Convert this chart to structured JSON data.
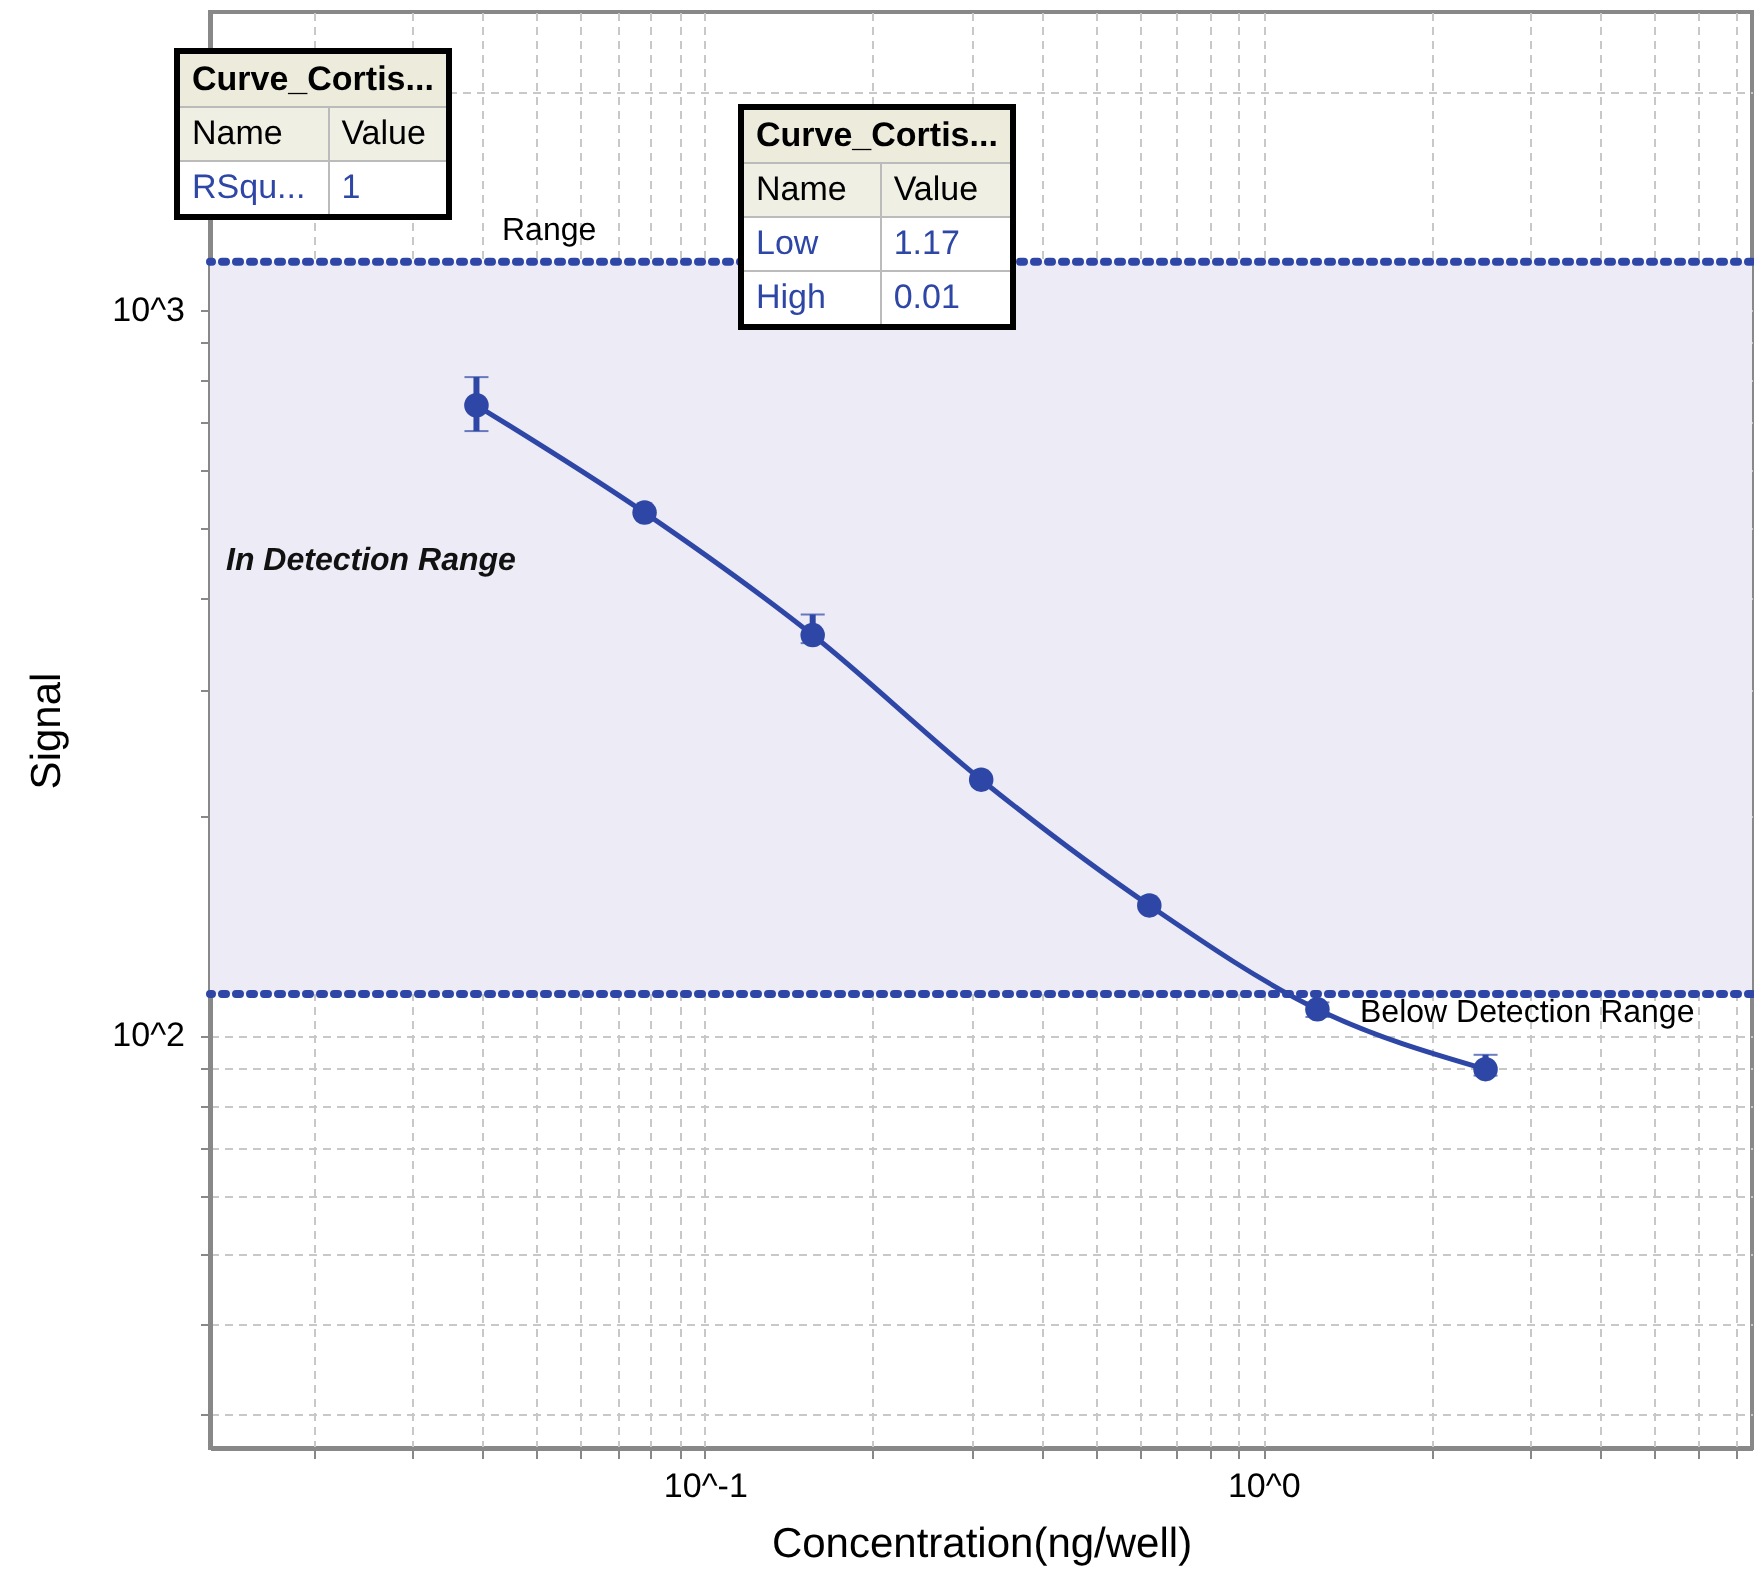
{
  "chart_data": {
    "type": "line",
    "xlabel": "Concentration(ng/well)",
    "ylabel": "Signal",
    "log": "xy",
    "x": [
      0.039,
      0.078,
      0.156,
      0.3125,
      0.625,
      1.25,
      2.5
    ],
    "series": [
      {
        "color": "#2e47a6",
        "values": [
          738,
          525,
          356,
          225,
          151,
          108.6,
          89.8
        ],
        "errors": [
          [
            680,
            807
          ],
          null,
          [
            347,
            380
          ],
          null,
          null,
          [
            106,
            111
          ],
          [
            88,
            94
          ]
        ]
      }
    ],
    "xlim": [
      0.013,
      7.5
    ],
    "ylim": [
      27,
      2570
    ],
    "xticks": [
      {
        "value": 0.02,
        "label": null
      },
      {
        "value": 0.03,
        "label": null
      },
      {
        "value": 0.04,
        "label": null
      },
      {
        "value": 0.05,
        "label": null
      },
      {
        "value": 0.06,
        "label": null
      },
      {
        "value": 0.07,
        "label": null
      },
      {
        "value": 0.08,
        "label": null
      },
      {
        "value": 0.09,
        "label": null
      },
      {
        "value": 0.1,
        "label": "10^-1"
      },
      {
        "value": 0.2,
        "label": null
      },
      {
        "value": 0.3,
        "label": null
      },
      {
        "value": 0.4,
        "label": null
      },
      {
        "value": 0.5,
        "label": null
      },
      {
        "value": 0.6,
        "label": null
      },
      {
        "value": 0.7,
        "label": null
      },
      {
        "value": 0.8,
        "label": null
      },
      {
        "value": 0.9,
        "label": null
      },
      {
        "value": 1,
        "label": "10^0"
      },
      {
        "value": 2,
        "label": null
      },
      {
        "value": 3,
        "label": null
      },
      {
        "value": 4,
        "label": null
      },
      {
        "value": 5,
        "label": null
      },
      {
        "value": 6,
        "label": null
      },
      {
        "value": 7,
        "label": null
      }
    ],
    "yticks": [
      {
        "value": 30,
        "label": null
      },
      {
        "value": 40,
        "label": null
      },
      {
        "value": 50,
        "label": null
      },
      {
        "value": 60,
        "label": null
      },
      {
        "value": 70,
        "label": null
      },
      {
        "value": 80,
        "label": null
      },
      {
        "value": 90,
        "label": null
      },
      {
        "value": 100,
        "label": "10^2"
      },
      {
        "value": 200,
        "label": null
      },
      {
        "value": 300,
        "label": null
      },
      {
        "value": 400,
        "label": null
      },
      {
        "value": 500,
        "label": null
      },
      {
        "value": 600,
        "label": null
      },
      {
        "value": 700,
        "label": null
      },
      {
        "value": 800,
        "label": null
      },
      {
        "value": 900,
        "label": null
      },
      {
        "value": 1000,
        "label": "10^3"
      },
      {
        "value": 2000,
        "label": null
      }
    ],
    "grid": true,
    "marker": "circle",
    "bands": [
      {
        "axis": "y",
        "from": 114,
        "to": 1164,
        "label": "In Detection Range",
        "color": "#ecebf6"
      }
    ],
    "ref_lines": [
      {
        "axis": "y",
        "value": 1164,
        "label": "Range",
        "color": "#2e47a6",
        "line_style": "dotted"
      },
      {
        "axis": "y",
        "value": 114,
        "label": "Below Detection Range",
        "color": "#2e47a6",
        "line_style": "dotted"
      }
    ],
    "annotations": [
      "Curve_Cortis...",
      "Name",
      "Value",
      "RSqu...",
      "1",
      "Curve_Cortis...",
      "Name",
      "Value",
      "Low",
      "1.17",
      "High",
      "0.01"
    ]
  }
}
